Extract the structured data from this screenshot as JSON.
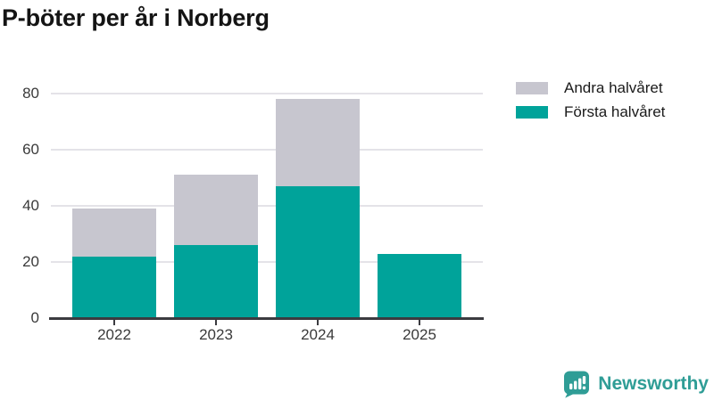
{
  "title": "P-böter per år i Norberg",
  "legend": {
    "items": [
      {
        "label": "Andra halvåret",
        "color": "#c7c6cf"
      },
      {
        "label": "Första halvåret",
        "color": "#00a39a"
      }
    ]
  },
  "chart_data": {
    "type": "bar",
    "stacked": true,
    "title": "P-böter per år i Norberg",
    "categories": [
      "2022",
      "2023",
      "2024",
      "2025"
    ],
    "series": [
      {
        "name": "Första halvåret",
        "color": "#00a39a",
        "values": [
          22,
          26,
          47,
          23
        ]
      },
      {
        "name": "Andra halvåret",
        "color": "#c7c6cf",
        "values": [
          17,
          25,
          31,
          0
        ]
      }
    ],
    "totals": [
      39,
      51,
      78,
      23
    ],
    "xlabel": "",
    "ylabel": "",
    "ylim": [
      0,
      80
    ],
    "yticks": [
      0,
      20,
      40,
      60,
      80
    ],
    "grid": true,
    "legend_position": "top-right"
  },
  "branding": {
    "logo_text": "Newsworthy",
    "brand_color": "#2f9d96",
    "logo_icon": "speech-bubble-bar-chart-icon"
  }
}
